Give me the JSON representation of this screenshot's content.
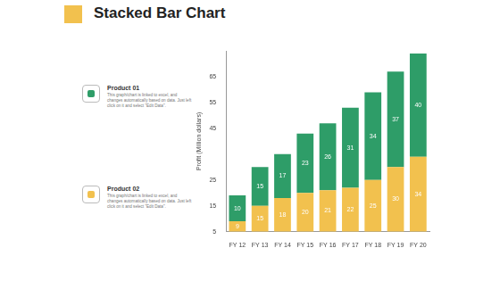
{
  "chart_data": {
    "type": "bar",
    "title": "Stacked Bar Chart",
    "y_label": "Profit (Million dollars)",
    "categories": [
      "FY 12",
      "FY 13",
      "FY 14",
      "FY 15",
      "FY 16",
      "FY 17",
      "FY 18",
      "FY 19",
      "FY 20"
    ],
    "series": [
      {
        "name": "Product 02",
        "color": "#f2c14e",
        "values": [
          9,
          15,
          18,
          20,
          21,
          22,
          25,
          30,
          34
        ],
        "description": "This graph/chart is linked to excel, and changes automatically based on data. Just left click on it and select \"Edit Data\"."
      },
      {
        "name": "Product 01",
        "color": "#2e9d68",
        "values": [
          10,
          15,
          17,
          23,
          26,
          31,
          34,
          37,
          40
        ],
        "description": "This graph/chart is linked to excel, and changes automatically based on data. Just left click on it and select \"Edit Data\"."
      }
    ],
    "ylim": [
      5,
      75
    ],
    "yticks": [
      5,
      15,
      25,
      45,
      55,
      65
    ],
    "stacked": true,
    "data_labels": true,
    "grid": false
  }
}
